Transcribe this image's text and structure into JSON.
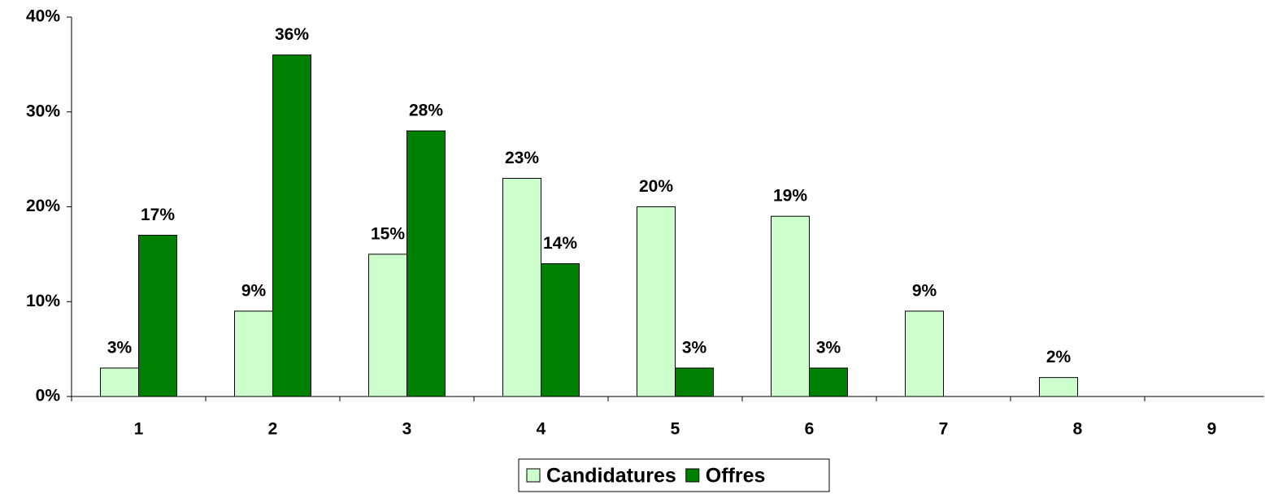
{
  "chart_data": {
    "type": "bar",
    "categories": [
      "1",
      "2",
      "3",
      "4",
      "5",
      "6",
      "7",
      "8",
      "9"
    ],
    "series": [
      {
        "name": "Candidatures",
        "color": "#ccffcc",
        "values": [
          3,
          9,
          15,
          23,
          20,
          19,
          9,
          2,
          null
        ],
        "value_labels": [
          "3%",
          "9%",
          "15%",
          "23%",
          "20%",
          "19%",
          "9%",
          "2%",
          null
        ]
      },
      {
        "name": "Offres",
        "color": "#008000",
        "values": [
          17,
          36,
          28,
          14,
          3,
          3,
          null,
          null,
          null
        ],
        "value_labels": [
          "17%",
          "36%",
          "28%",
          "14%",
          "3%",
          "3%",
          null,
          null,
          null
        ]
      }
    ],
    "ylim": [
      0,
      40
    ],
    "yticks": [
      {
        "value": 0,
        "label": "0%"
      },
      {
        "value": 10,
        "label": "10%"
      },
      {
        "value": 20,
        "label": "20%"
      },
      {
        "value": 30,
        "label": "30%"
      },
      {
        "value": 40,
        "label": "40%"
      }
    ],
    "grid": false,
    "legend": "bottom"
  }
}
